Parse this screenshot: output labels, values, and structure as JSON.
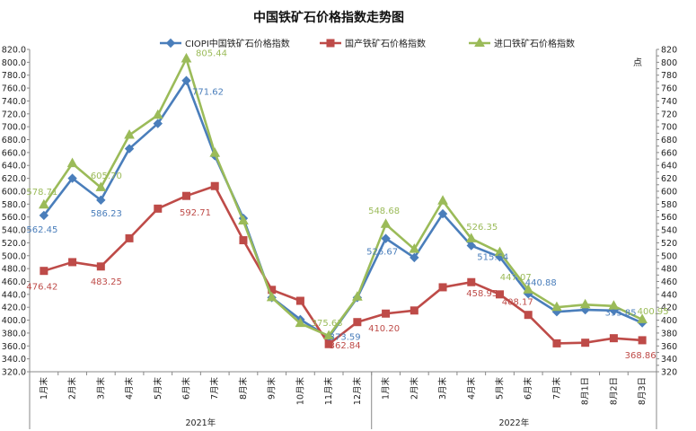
{
  "chart_data": {
    "type": "line",
    "title": "中国铁矿石价格指数走势图",
    "y_unit": "点",
    "ylim": [
      320,
      820
    ],
    "y_ticks_step": 20,
    "y_tick_format": "0.0",
    "y2_ticks_step": 10,
    "grid": false,
    "legend_position": "top",
    "categories": [
      "1月末",
      "2月末",
      "3月末",
      "4月末",
      "5月末",
      "6月末",
      "7月末",
      "8月末",
      "9月末",
      "10月末",
      "11月末",
      "12月末",
      "1月末",
      "2月末",
      "3月末",
      "4月末",
      "5月末",
      "6月末",
      "7月末",
      "8月1日",
      "8月2日",
      "8月3日"
    ],
    "groups": [
      {
        "label": "2021年",
        "start": 0,
        "end": 11
      },
      {
        "label": "2022年",
        "start": 12,
        "end": 21
      }
    ],
    "series": [
      {
        "name": "CIOPI中国铁矿石价格指数",
        "color": "#4a7ebb",
        "marker": "diamond",
        "values": [
          562.45,
          620,
          586.23,
          666,
          705,
          771.62,
          655,
          558,
          435,
          401,
          373.59,
          435,
          526.67,
          497,
          565,
          515.64,
          498,
          440.88,
          413,
          416,
          415,
          395.85
        ],
        "labels": [
          {
            "index": 0,
            "text": "562.45"
          },
          {
            "index": 2,
            "text": "586.23"
          },
          {
            "index": 5,
            "text": "771.62"
          },
          {
            "index": 10,
            "text": "373.59"
          },
          {
            "index": 12,
            "text": "526.67"
          },
          {
            "index": 15,
            "text": "515.64"
          },
          {
            "index": 17,
            "text": "440.88"
          },
          {
            "index": 21,
            "text": "395.85"
          }
        ]
      },
      {
        "name": "国产铁矿石价格指数",
        "color": "#be4b48",
        "marker": "square",
        "values": [
          476.42,
          490,
          483.25,
          527,
          573,
          592.71,
          608,
          524,
          447,
          430,
          362.84,
          397,
          410.2,
          415,
          451,
          458.95,
          440,
          408.17,
          364,
          365,
          372,
          368.86
        ],
        "labels": [
          {
            "index": 0,
            "text": "476.42"
          },
          {
            "index": 2,
            "text": "483.25"
          },
          {
            "index": 5,
            "text": "592.71"
          },
          {
            "index": 10,
            "text": "362.84"
          },
          {
            "index": 12,
            "text": "410.20"
          },
          {
            "index": 15,
            "text": "458.95"
          },
          {
            "index": 17,
            "text": "408.17"
          },
          {
            "index": 21,
            "text": "368.86"
          }
        ]
      },
      {
        "name": "进口铁矿石价格指数",
        "color": "#9bbb59",
        "marker": "triangle",
        "values": [
          578.71,
          643,
          605.7,
          687,
          718,
          805.44,
          659,
          554,
          435,
          395,
          375.63,
          436,
          548.68,
          510,
          585,
          526.35,
          505,
          447.07,
          420,
          424,
          422,
          400.95
        ],
        "labels": [
          {
            "index": 0,
            "text": "578.71"
          },
          {
            "index": 2,
            "text": "605.70"
          },
          {
            "index": 5,
            "text": "805.44"
          },
          {
            "index": 10,
            "text": "375.63"
          },
          {
            "index": 12,
            "text": "548.68"
          },
          {
            "index": 15,
            "text": "526.35"
          },
          {
            "index": 17,
            "text": "447.07"
          },
          {
            "index": 21,
            "text": "400.95"
          }
        ]
      }
    ]
  }
}
